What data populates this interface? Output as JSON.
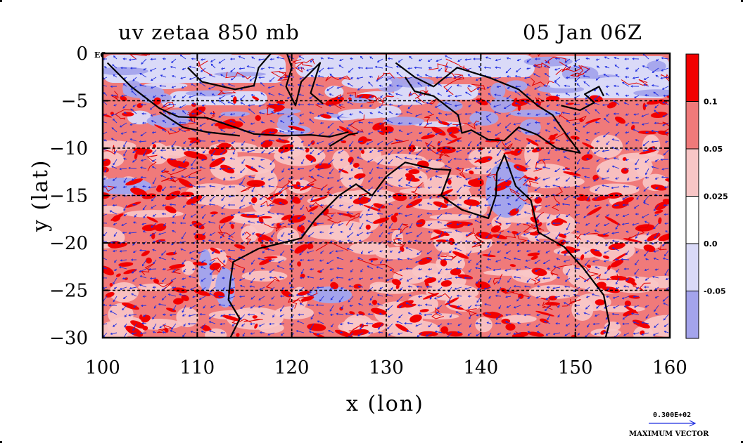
{
  "header": {
    "title_left": "uv zetaa 850 mb",
    "title_right": "05 Jan 06Z"
  },
  "colors": {
    "strong_pos": "#f20000",
    "pos": "#f07a7a",
    "weak_pos": "#f8c6c6",
    "zero": "#ffffff",
    "weak_neg": "#dadaf8",
    "neg": "#a4a4ec",
    "vectors": "#1f2ee0",
    "contour": "#e00000",
    "coast": "#000000"
  },
  "legend": {
    "labels": [
      "0.1",
      "0.05",
      "0.025",
      "0.0",
      "-0.05"
    ]
  },
  "max_vector": {
    "value": "0.300E+02",
    "label": "MAXIMUM VECTOR"
  },
  "chart_data": {
    "type": "heatmap",
    "title": "uv zetaa 850 mb",
    "subtitle": "05 Jan 06Z",
    "xlabel": "x (lon)",
    "ylabel": "y (lat)",
    "xlim": [
      100,
      160
    ],
    "ylim": [
      -30,
      0
    ],
    "x_ticks": [
      100,
      110,
      120,
      130,
      140,
      150,
      160
    ],
    "y_ticks": [
      0,
      -5,
      -10,
      -15,
      -20,
      -25,
      -30
    ],
    "y_tick_labels": [
      "0",
      "−5",
      "−10",
      "−15",
      "−20",
      "−25",
      "−30"
    ],
    "equator_label": "EQ",
    "grid": true,
    "grid_lines_x": [
      110,
      120,
      130,
      140,
      150
    ],
    "grid_lines_y": [
      -5,
      -10,
      -15,
      -20,
      -25
    ],
    "color_levels": [
      -0.05,
      0.0,
      0.025,
      0.05,
      0.1
    ],
    "legend_position": "right"
  }
}
